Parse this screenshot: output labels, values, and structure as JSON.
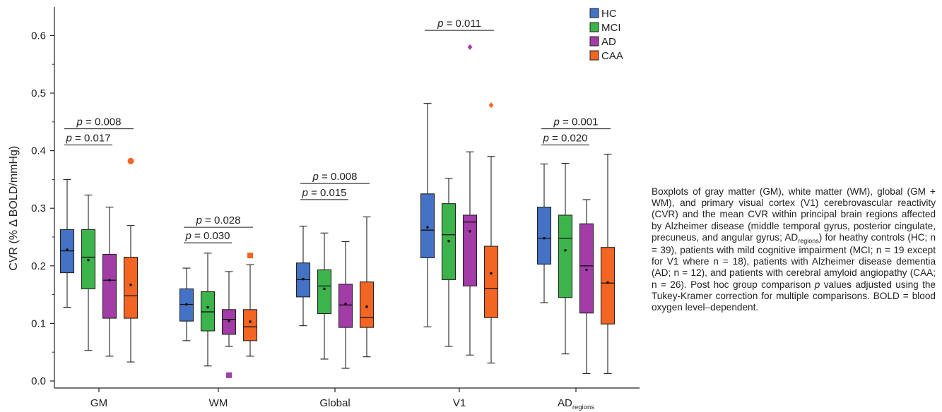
{
  "caption": "Boxplots of gray matter (GM), white matter (WM), global (GM + WM), and primary visual cortex (V1) cerebrovascular reactivity (CVR) and the mean CVR within principal brain regions affected by Alzheimer disease (middle temporal gyrus, posterior cingulate, precuneus, and angular gyrus; ADregions) for heathy controls (HC; n = 39), patients with mild cognitive impairment (MCI; n = 19 except for V1 where n = 18), patients with Alzheimer disease dementia (AD; n = 12), and patients with cerebral amyloid angiopathy (CAA; n = 26). Post hoc group comparison p values adjusted using the Tukey-Kramer correction for multiple comparisons. BOLD = blood oxygen level–dependent.",
  "chart_data": {
    "type": "box",
    "ylabel": "CVR (% Δ BOLD/mmHg)",
    "ylim": [
      -0.01,
      0.66
    ],
    "yticks": [
      "0.0",
      "0.1",
      "0.2",
      "0.3",
      "0.4",
      "0.5",
      "0.6"
    ],
    "legend_position": "top-right",
    "series": [
      {
        "name": "HC",
        "color": "#4472c4"
      },
      {
        "name": "MCI",
        "color": "#3cb44b"
      },
      {
        "name": "AD",
        "color": "#a23ca6"
      },
      {
        "name": "CAA",
        "color": "#f26522"
      }
    ],
    "categories": [
      {
        "label": "GM",
        "boxes": [
          {
            "min": 0.128,
            "q1": 0.188,
            "median": 0.226,
            "q3": 0.263,
            "max": 0.35,
            "mean": 0.228,
            "outliers": []
          },
          {
            "min": 0.053,
            "q1": 0.16,
            "median": 0.215,
            "q3": 0.263,
            "max": 0.323,
            "mean": 0.21,
            "outliers": []
          },
          {
            "min": 0.043,
            "q1": 0.109,
            "median": 0.175,
            "q3": 0.22,
            "max": 0.302,
            "mean": 0.175,
            "outliers": []
          },
          {
            "min": 0.033,
            "q1": 0.109,
            "median": 0.148,
            "q3": 0.215,
            "max": 0.27,
            "mean": 0.167,
            "outliers": [
              0.382
            ]
          }
        ],
        "comparisons": [
          {
            "label": "p = 0.008",
            "from": 0,
            "to": 3,
            "y": 0.438
          },
          {
            "label": "p = 0.017",
            "from": 0,
            "to": 2,
            "y": 0.41
          }
        ]
      },
      {
        "label": "WM",
        "boxes": [
          {
            "min": 0.07,
            "q1": 0.104,
            "median": 0.133,
            "q3": 0.16,
            "max": 0.196,
            "mean": 0.133,
            "outliers": []
          },
          {
            "min": 0.026,
            "q1": 0.087,
            "median": 0.12,
            "q3": 0.155,
            "max": 0.222,
            "mean": 0.128,
            "outliers": []
          },
          {
            "min": 0.06,
            "q1": 0.081,
            "median": 0.107,
            "q3": 0.124,
            "max": 0.19,
            "mean": 0.104,
            "outliers": [
              0.01
            ]
          },
          {
            "min": 0.043,
            "q1": 0.07,
            "median": 0.094,
            "q3": 0.124,
            "max": 0.202,
            "mean": 0.103,
            "outliers": [
              0.218
            ]
          }
        ],
        "comparisons": [
          {
            "label": "p = 0.028",
            "from": 0,
            "to": 3,
            "y": 0.267
          },
          {
            "label": "p = 0.030",
            "from": 0,
            "to": 2,
            "y": 0.24
          }
        ]
      },
      {
        "label": "Global",
        "boxes": [
          {
            "min": 0.096,
            "q1": 0.146,
            "median": 0.176,
            "q3": 0.205,
            "max": 0.269,
            "mean": 0.177,
            "outliers": []
          },
          {
            "min": 0.038,
            "q1": 0.117,
            "median": 0.165,
            "q3": 0.193,
            "max": 0.257,
            "mean": 0.16,
            "outliers": []
          },
          {
            "min": 0.022,
            "q1": 0.093,
            "median": 0.132,
            "q3": 0.168,
            "max": 0.242,
            "mean": 0.134,
            "outliers": []
          },
          {
            "min": 0.042,
            "q1": 0.093,
            "median": 0.11,
            "q3": 0.172,
            "max": 0.285,
            "mean": 0.129,
            "outliers": []
          }
        ],
        "comparisons": [
          {
            "label": "p = 0.008",
            "from": 0,
            "to": 3,
            "y": 0.343
          },
          {
            "label": "p = 0.015",
            "from": 0,
            "to": 2,
            "y": 0.315
          }
        ]
      },
      {
        "label": "V1",
        "boxes": [
          {
            "min": 0.094,
            "q1": 0.214,
            "median": 0.262,
            "q3": 0.325,
            "max": 0.482,
            "mean": 0.267,
            "outliers": []
          },
          {
            "min": 0.06,
            "q1": 0.176,
            "median": 0.254,
            "q3": 0.308,
            "max": 0.352,
            "mean": 0.243,
            "outliers": []
          },
          {
            "min": 0.045,
            "q1": 0.165,
            "median": 0.276,
            "q3": 0.288,
            "max": 0.398,
            "mean": 0.26,
            "outliers": [
              0.58
            ]
          },
          {
            "min": 0.031,
            "q1": 0.11,
            "median": 0.161,
            "q3": 0.234,
            "max": 0.39,
            "mean": 0.187,
            "outliers": [
              0.479
            ]
          }
        ],
        "comparisons": [
          {
            "label": "p = 0.011",
            "from": 0,
            "to": 3,
            "y": 0.609
          }
        ]
      },
      {
        "label": "AD",
        "label_sub": "regions",
        "boxes": [
          {
            "min": 0.136,
            "q1": 0.203,
            "median": 0.248,
            "q3": 0.302,
            "max": 0.377,
            "mean": 0.248,
            "outliers": []
          },
          {
            "min": 0.047,
            "q1": 0.145,
            "median": 0.248,
            "q3": 0.288,
            "max": 0.378,
            "mean": 0.227,
            "outliers": []
          },
          {
            "min": 0.013,
            "q1": 0.118,
            "median": 0.2,
            "q3": 0.273,
            "max": 0.315,
            "mean": 0.193,
            "outliers": []
          },
          {
            "min": 0.013,
            "q1": 0.099,
            "median": 0.17,
            "q3": 0.232,
            "max": 0.394,
            "mean": 0.171,
            "outliers": []
          }
        ],
        "comparisons": [
          {
            "label": "p = 0.001",
            "from": 0,
            "to": 3,
            "y": 0.438
          },
          {
            "label": "p = 0.020",
            "from": 0,
            "to": 2,
            "y": 0.41
          }
        ]
      }
    ]
  }
}
